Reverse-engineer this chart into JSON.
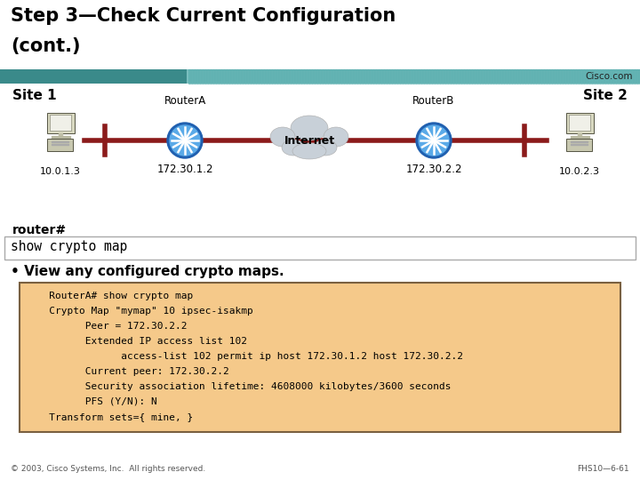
{
  "title_line1": "Step 3—Check Current Configuration",
  "title_line2": "(cont.)",
  "title_fontsize": 15,
  "title_color": "#000000",
  "header_bar_left_color": "#3a8a8a",
  "header_bar_right_color": "#7bbfbf",
  "cisco_text": "Cisco.com",
  "site1_label": "Site 1",
  "site2_label": "Site 2",
  "routerA_label": "RouterA",
  "routerB_label": "RouterB",
  "internet_label": "Internet",
  "ip_10013": "10.0.1.3",
  "ip_17230": "172.30.1.2",
  "ip_17231": "172.30.2.2",
  "ip_10023": "10.0.2.3",
  "prompt_text": "router#",
  "command_text": "show crypto map",
  "bullet_text": "View any configured crypto maps.",
  "code_lines": [
    "   RouterA# show crypto map",
    "   Crypto Map \"mymap\" 10 ipsec-isakmp",
    "         Peer = 172.30.2.2",
    "         Extended IP access list 102",
    "               access-list 102 permit ip host 172.30.1.2 host 172.30.2.2",
    "         Current peer: 172.30.2.2",
    "         Security association lifetime: 4608000 kilobytes/3600 seconds",
    "         PFS (Y/N): N",
    "   Transform sets={ mine, }"
  ],
  "code_bg_color": "#f5c98a",
  "code_border_color": "#7a6040",
  "footer_left": "© 2003, Cisco Systems, Inc.  All rights reserved.",
  "footer_right": "FHS10—6-61",
  "bg_color": "#ffffff",
  "command_box_bg": "#ffffff",
  "command_box_border": "#aaaaaa",
  "line_color": "#8b1a1a",
  "router_color_outer": "#2a6abf",
  "router_color_inner": "#5aaae8",
  "cloud_color": "#c8d0d8",
  "cloud_edge_color": "#aaaaaa"
}
